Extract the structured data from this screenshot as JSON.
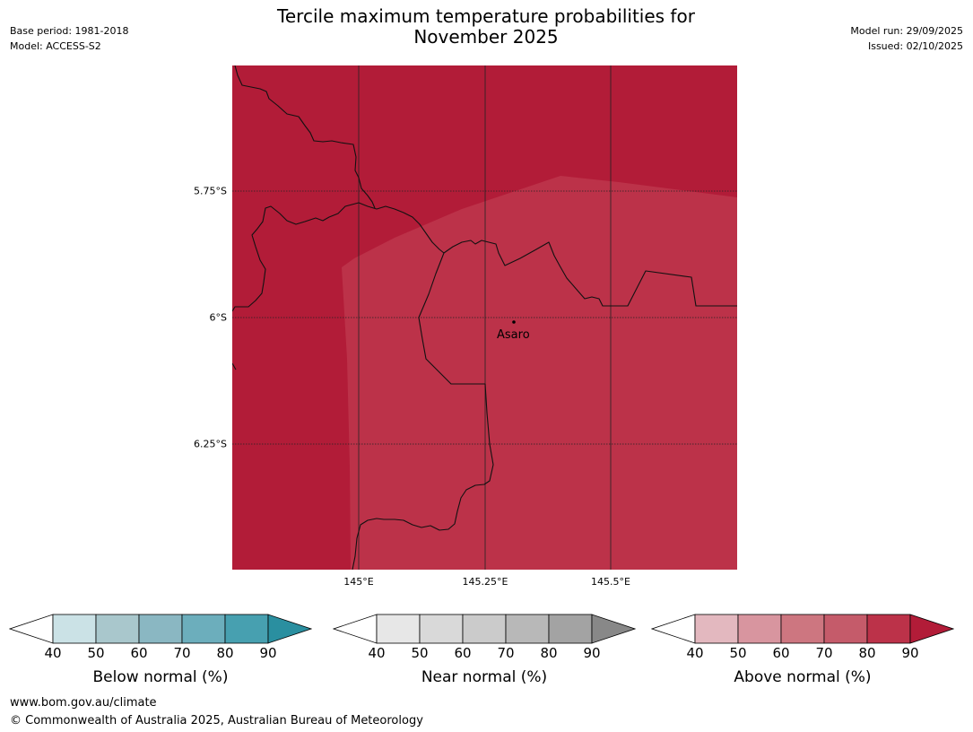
{
  "header": {
    "left": {
      "base_period": "Base period: 1981-2018",
      "model": "Model: ACCESS-S2"
    },
    "title_line1": "Tercile maximum temperature probabilities for",
    "title_line2": "November 2025",
    "right": {
      "model_run": "Model run: 29/09/2025",
      "issued": "Issued: 02/10/2025"
    }
  },
  "map": {
    "lat_labels": [
      "5.75°S",
      "6°S",
      "6.25°S"
    ],
    "lon_labels": [
      "145°E",
      "145.25°E",
      "145.5°E"
    ],
    "place": {
      "name": "Asaro"
    },
    "colors": {
      "dark_region": "#b21c38",
      "light_region": "#bc3249",
      "border": "#111111",
      "grid": "#222222"
    }
  },
  "colorbars": [
    {
      "id": "below",
      "title": "Below normal (%)",
      "ticks": [
        "40",
        "50",
        "60",
        "70",
        "80",
        "90"
      ],
      "colors": [
        "#ffffff",
        "#cbe2e6",
        "#a9c7cc",
        "#8ab7c2",
        "#6caebc",
        "#47a0b0",
        "#2a8fa0"
      ]
    },
    {
      "id": "near",
      "title": "Near normal (%)",
      "ticks": [
        "40",
        "50",
        "60",
        "70",
        "80",
        "90"
      ],
      "colors": [
        "#ffffff",
        "#e7e7e7",
        "#d9d9d9",
        "#cbcbcb",
        "#b8b8b8",
        "#a3a3a3",
        "#888888"
      ]
    },
    {
      "id": "above",
      "title": "Above normal (%)",
      "ticks": [
        "40",
        "50",
        "60",
        "70",
        "80",
        "90"
      ],
      "colors": [
        "#ffffff",
        "#e3b8bf",
        "#d8959f",
        "#cd7680",
        "#c55b6a",
        "#bc3249",
        "#b21c38"
      ]
    }
  ],
  "footer": {
    "website": "www.bom.gov.au/climate",
    "copyright": "© Commonwealth of Australia 2025, Australian Bureau of Meteorology"
  }
}
